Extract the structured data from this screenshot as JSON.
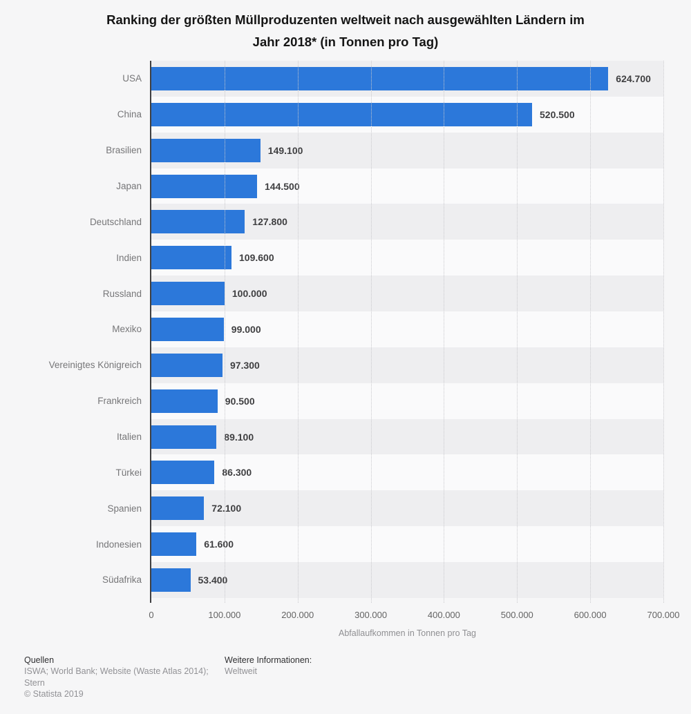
{
  "title_lines": [
    "Ranking der größten Müllproduzenten weltweit nach ausgewählten Ländern im",
    "Jahr 2018* (in Tonnen pro Tag)"
  ],
  "chart_data": {
    "type": "bar",
    "orientation": "horizontal",
    "categories": [
      "USA",
      "China",
      "Brasilien",
      "Japan",
      "Deutschland",
      "Indien",
      "Russland",
      "Mexiko",
      "Vereinigtes Königreich",
      "Frankreich",
      "Italien",
      "Türkei",
      "Spanien",
      "Indonesien",
      "Südafrika"
    ],
    "values": [
      624700,
      520500,
      149100,
      144500,
      127800,
      109600,
      100000,
      99000,
      97300,
      90500,
      89100,
      86300,
      72100,
      61600,
      53400
    ],
    "value_labels": [
      "624.700",
      "520.500",
      "149.100",
      "144.500",
      "127.800",
      "109.600",
      "100.000",
      "99.000",
      "97.300",
      "90.500",
      "89.100",
      "86.300",
      "72.100",
      "61.600",
      "53.400"
    ],
    "xlabel": "Abfallaufkommen in Tonnen pro Tag",
    "xlim": [
      0,
      700000
    ],
    "xticks": [
      0,
      100000,
      200000,
      300000,
      400000,
      500000,
      600000,
      700000
    ],
    "xtick_labels": [
      "0",
      "100.000",
      "200.000",
      "300.000",
      "400.000",
      "500.000",
      "600.000",
      "700.000"
    ],
    "bar_color": "#2c78da",
    "row_band_odd": "#eeeef0",
    "row_band_even": "#fafafb",
    "grid": true,
    "legend": false
  },
  "footer": {
    "sources_heading": "Quellen",
    "sources_lines": [
      "ISWA; World Bank; Website (Waste Atlas 2014);",
      "Stern"
    ],
    "copyright": "© Statista 2019",
    "info_heading": "Weitere Informationen:",
    "info_value": "Weltweit"
  }
}
